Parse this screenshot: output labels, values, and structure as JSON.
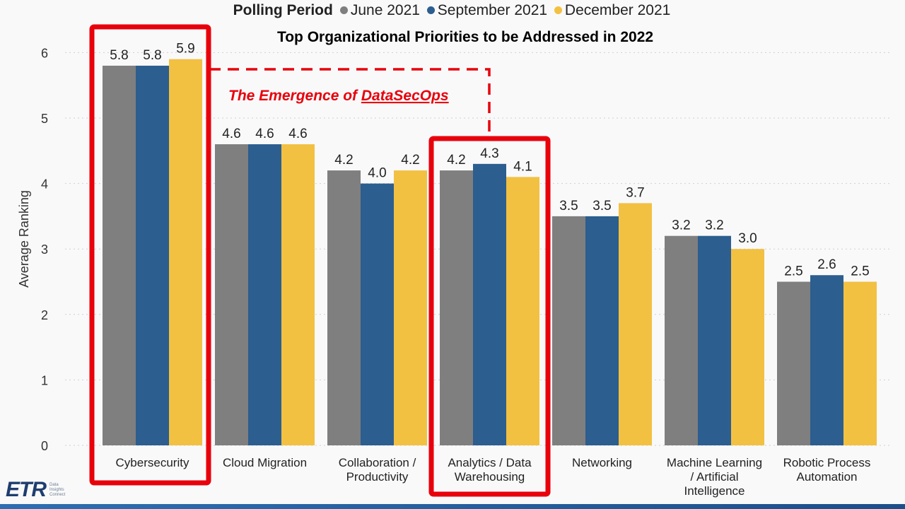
{
  "legend": {
    "title": "Polling Period",
    "items": [
      {
        "label": "June 2021",
        "color": "#7f7f7f"
      },
      {
        "label": "September 2021",
        "color": "#2c5e8f"
      },
      {
        "label": "December 2021",
        "color": "#f2c142"
      }
    ]
  },
  "annotation": {
    "prefix": "The Emergence of ",
    "link": "DataSecOps"
  },
  "logo": {
    "mark": "ETR",
    "sub": [
      "Data",
      "Insights",
      "Connect"
    ]
  },
  "chart_data": {
    "type": "bar",
    "title": "Top Organizational Priorities to be Addressed in 2022",
    "xlabel": "",
    "ylabel": "Average Ranking",
    "ylim": [
      0,
      6.2
    ],
    "yticks": [
      0,
      1,
      2,
      3,
      4,
      5,
      6
    ],
    "grid": true,
    "categories": [
      [
        "Cybersecurity"
      ],
      [
        "Cloud Migration"
      ],
      [
        "Collaboration /",
        "Productivity"
      ],
      [
        "Analytics / Data",
        "Warehousing"
      ],
      [
        "Networking"
      ],
      [
        "Machine Learning",
        "/ Artificial",
        "Intelligence"
      ],
      [
        "Robotic Process",
        "Automation"
      ]
    ],
    "series": [
      {
        "name": "June 2021",
        "values": [
          5.8,
          4.6,
          4.2,
          4.2,
          3.5,
          3.2,
          2.5
        ],
        "display": [
          "5.8",
          "4.6",
          "4.2",
          "4.2",
          "3.5",
          "3.2",
          "2.5"
        ]
      },
      {
        "name": "September 2021",
        "values": [
          5.8,
          4.6,
          4.0,
          4.3,
          3.5,
          3.2,
          2.6
        ],
        "display": [
          "5.8",
          "4.6",
          "4.0",
          "4.3",
          "3.5",
          "3.2",
          "2.6"
        ]
      },
      {
        "name": "December 2021",
        "values": [
          5.9,
          4.6,
          4.2,
          4.1,
          3.7,
          3.0,
          2.5
        ],
        "display": [
          "5.9",
          "4.6",
          "4.2",
          "4.1",
          "3.7",
          "3.0",
          "2.5"
        ]
      }
    ],
    "highlighted_categories": [
      "Cybersecurity",
      "Analytics / Data Warehousing"
    ]
  }
}
